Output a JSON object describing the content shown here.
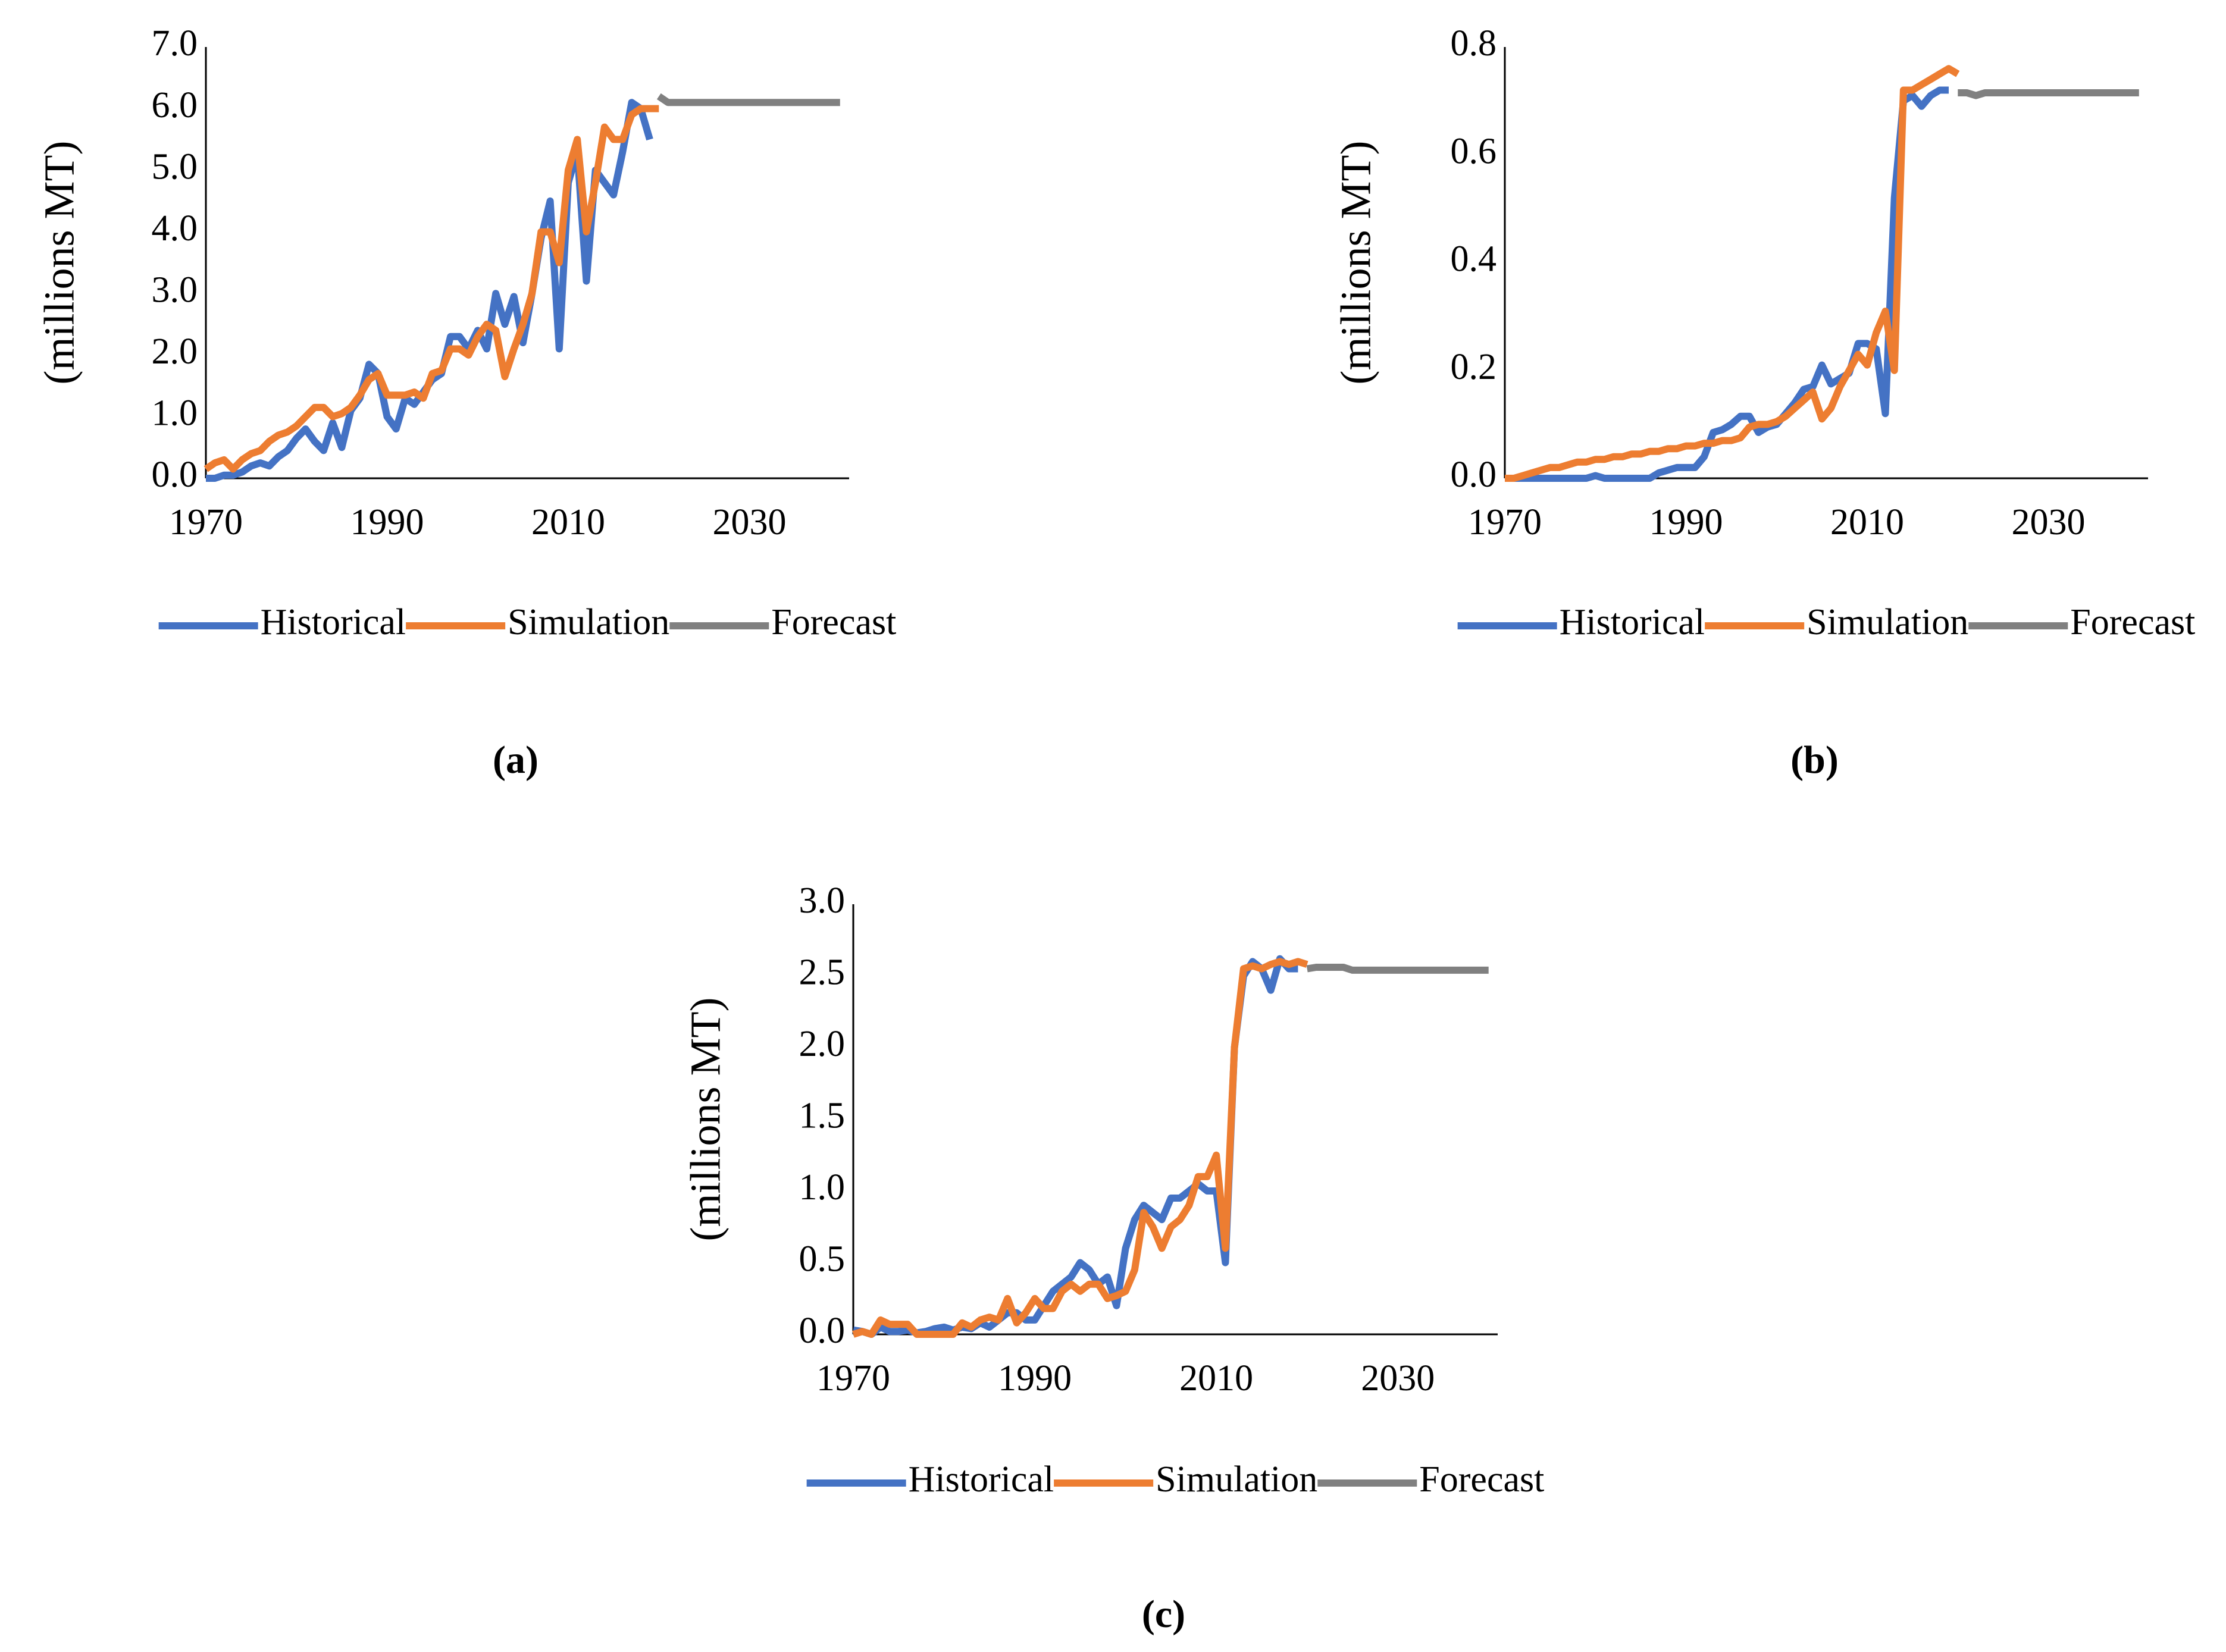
{
  "chart_data": [
    {
      "type": "line",
      "caption": "(a)",
      "y_label": "(millions MT)",
      "x": [
        1970,
        1971,
        1972,
        1973,
        1974,
        1975,
        1976,
        1977,
        1978,
        1979,
        1980,
        1981,
        1982,
        1983,
        1984,
        1985,
        1986,
        1987,
        1988,
        1989,
        1990,
        1991,
        1992,
        1993,
        1994,
        1995,
        1996,
        1997,
        1998,
        1999,
        2000,
        2001,
        2002,
        2003,
        2004,
        2005,
        2006,
        2007,
        2008,
        2009,
        2010,
        2011,
        2012,
        2013,
        2014,
        2015,
        2016,
        2017,
        2018,
        2019,
        2020,
        2021,
        2022,
        2023,
        2024,
        2025,
        2026,
        2027,
        2028,
        2029,
        2030,
        2031,
        2032,
        2033,
        2034,
        2035,
        2036,
        2037,
        2038,
        2039,
        2040
      ],
      "xlim": [
        1970,
        2041
      ],
      "xticks": [
        1970,
        1990,
        2010,
        2030
      ],
      "ylim": [
        0,
        7
      ],
      "yticks": [
        {
          "value": 0,
          "label": "0.0"
        },
        {
          "value": 1,
          "label": "1.0"
        },
        {
          "value": 2,
          "label": "2.0"
        },
        {
          "value": 3,
          "label": "3.0"
        },
        {
          "value": 4,
          "label": "4.0"
        },
        {
          "value": 5,
          "label": "5.0"
        },
        {
          "value": 6,
          "label": "6.0"
        },
        {
          "value": 7,
          "label": "7.0"
        }
      ],
      "series": [
        {
          "name": "Historical",
          "color": "#4472c4",
          "values": [
            0,
            0,
            0.05,
            0.05,
            0.1,
            0.2,
            0.25,
            0.2,
            0.35,
            0.45,
            0.65,
            0.8,
            0.6,
            0.45,
            0.9,
            0.5,
            1.1,
            1.3,
            1.85,
            1.7,
            1.0,
            0.8,
            1.3,
            1.2,
            1.4,
            1.6,
            1.7,
            2.3,
            2.3,
            2.1,
            2.4,
            2.1,
            3.0,
            2.5,
            2.95,
            2.2,
            3.0,
            3.9,
            4.5,
            2.1,
            4.8,
            5.3,
            3.2,
            5.0,
            4.8,
            4.6,
            5.3,
            6.1,
            6.0,
            5.5,
            null,
            null,
            null,
            null,
            null,
            null,
            null,
            null,
            null,
            null,
            null,
            null,
            null,
            null,
            null,
            null,
            null,
            null,
            null,
            null,
            null
          ]
        },
        {
          "name": "Simulation",
          "color": "#ed7d31",
          "values": [
            0.15,
            0.25,
            0.3,
            0.15,
            0.3,
            0.4,
            0.45,
            0.6,
            0.7,
            0.75,
            0.85,
            1.0,
            1.15,
            1.15,
            1.0,
            1.05,
            1.15,
            1.35,
            1.6,
            1.7,
            1.35,
            1.35,
            1.35,
            1.4,
            1.3,
            1.7,
            1.75,
            2.1,
            2.1,
            2.0,
            2.3,
            2.5,
            2.4,
            1.65,
            2.1,
            2.5,
            3.0,
            4.0,
            4.0,
            3.5,
            5.0,
            5.5,
            4.0,
            4.8,
            5.7,
            5.5,
            5.5,
            5.9,
            6.0,
            6.0,
            6.0,
            null,
            null,
            null,
            null,
            null,
            null,
            null,
            null,
            null,
            null,
            null,
            null,
            null,
            null,
            null,
            null,
            null,
            null,
            null,
            null
          ]
        },
        {
          "name": "Forecast",
          "color": "#808080",
          "values": [
            null,
            null,
            null,
            null,
            null,
            null,
            null,
            null,
            null,
            null,
            null,
            null,
            null,
            null,
            null,
            null,
            null,
            null,
            null,
            null,
            null,
            null,
            null,
            null,
            null,
            null,
            null,
            null,
            null,
            null,
            null,
            null,
            null,
            null,
            null,
            null,
            null,
            null,
            null,
            null,
            null,
            null,
            null,
            null,
            null,
            null,
            null,
            null,
            null,
            null,
            6.2,
            6.1,
            6.1,
            6.1,
            6.1,
            6.1,
            6.1,
            6.1,
            6.1,
            6.1,
            6.1,
            6.1,
            6.1,
            6.1,
            6.1,
            6.1,
            6.1,
            6.1,
            6.1,
            6.1,
            6.1
          ]
        }
      ]
    },
    {
      "type": "line",
      "caption": "(b)",
      "y_label": "(millions MT)",
      "x": [
        1970,
        1971,
        1972,
        1973,
        1974,
        1975,
        1976,
        1977,
        1978,
        1979,
        1980,
        1981,
        1982,
        1983,
        1984,
        1985,
        1986,
        1987,
        1988,
        1989,
        1990,
        1991,
        1992,
        1993,
        1994,
        1995,
        1996,
        1997,
        1998,
        1999,
        2000,
        2001,
        2002,
        2003,
        2004,
        2005,
        2006,
        2007,
        2008,
        2009,
        2010,
        2011,
        2012,
        2013,
        2014,
        2015,
        2016,
        2017,
        2018,
        2019,
        2020,
        2021,
        2022,
        2023,
        2024,
        2025,
        2026,
        2027,
        2028,
        2029,
        2030,
        2031,
        2032,
        2033,
        2034,
        2035,
        2036,
        2037,
        2038,
        2039,
        2040
      ],
      "xlim": [
        1970,
        2041
      ],
      "xticks": [
        1970,
        1990,
        2010,
        2030
      ],
      "ylim": [
        0,
        0.8
      ],
      "yticks": [
        {
          "value": 0,
          "label": "0.0"
        },
        0.2,
        0.4,
        0.6,
        0.8
      ],
      "series": [
        {
          "name": "Historical",
          "color": "#4472c4",
          "values": [
            0,
            0,
            0,
            0,
            0,
            0,
            0,
            0,
            0,
            0,
            0.005,
            0,
            0,
            0,
            0,
            0,
            0,
            0.01,
            0.015,
            0.02,
            0.02,
            0.02,
            0.04,
            0.085,
            0.09,
            0.1,
            0.115,
            0.115,
            0.085,
            0.095,
            0.1,
            0.12,
            0.14,
            0.165,
            0.17,
            0.21,
            0.175,
            0.185,
            0.195,
            0.25,
            0.25,
            0.24,
            0.12,
            0.52,
            0.7,
            0.71,
            0.69,
            0.71,
            0.72,
            0.72,
            null,
            null,
            null,
            null,
            null,
            null,
            null,
            null,
            null,
            null,
            null,
            null,
            null,
            null,
            null,
            null,
            null,
            null,
            null,
            null,
            null
          ]
        },
        {
          "name": "Simulation",
          "color": "#ed7d31",
          "values": [
            0,
            0,
            0.005,
            0.01,
            0.015,
            0.02,
            0.02,
            0.025,
            0.03,
            0.03,
            0.035,
            0.035,
            0.04,
            0.04,
            0.045,
            0.045,
            0.05,
            0.05,
            0.055,
            0.055,
            0.06,
            0.06,
            0.065,
            0.065,
            0.07,
            0.07,
            0.075,
            0.095,
            0.1,
            0.1,
            0.105,
            0.115,
            0.13,
            0.145,
            0.16,
            0.11,
            0.13,
            0.17,
            0.2,
            0.23,
            0.21,
            0.27,
            0.31,
            0.2,
            0.72,
            0.72,
            0.73,
            0.74,
            0.75,
            0.76,
            0.75,
            null,
            null,
            null,
            null,
            null,
            null,
            null,
            null,
            null,
            null,
            null,
            null,
            null,
            null,
            null,
            null,
            null,
            null,
            null,
            null
          ]
        },
        {
          "name": "Forecast",
          "color": "#808080",
          "values": [
            null,
            null,
            null,
            null,
            null,
            null,
            null,
            null,
            null,
            null,
            null,
            null,
            null,
            null,
            null,
            null,
            null,
            null,
            null,
            null,
            null,
            null,
            null,
            null,
            null,
            null,
            null,
            null,
            null,
            null,
            null,
            null,
            null,
            null,
            null,
            null,
            null,
            null,
            null,
            null,
            null,
            null,
            null,
            null,
            null,
            null,
            null,
            null,
            null,
            null,
            0.715,
            0.715,
            0.71,
            0.715,
            0.715,
            0.715,
            0.715,
            0.715,
            0.715,
            0.715,
            0.715,
            0.715,
            0.715,
            0.715,
            0.715,
            0.715,
            0.715,
            0.715,
            0.715,
            0.715,
            0.715
          ]
        }
      ]
    },
    {
      "type": "line",
      "caption": "(c)",
      "y_label": "(millions MT)",
      "x": [
        1970,
        1971,
        1972,
        1973,
        1974,
        1975,
        1976,
        1977,
        1978,
        1979,
        1980,
        1981,
        1982,
        1983,
        1984,
        1985,
        1986,
        1987,
        1988,
        1989,
        1990,
        1991,
        1992,
        1993,
        1994,
        1995,
        1996,
        1997,
        1998,
        1999,
        2000,
        2001,
        2002,
        2003,
        2004,
        2005,
        2006,
        2007,
        2008,
        2009,
        2010,
        2011,
        2012,
        2013,
        2014,
        2015,
        2016,
        2017,
        2018,
        2019,
        2020,
        2021,
        2022,
        2023,
        2024,
        2025,
        2026,
        2027,
        2028,
        2029,
        2030,
        2031,
        2032,
        2033,
        2034,
        2035,
        2036,
        2037,
        2038,
        2039,
        2040
      ],
      "xlim": [
        1970,
        2041
      ],
      "xticks": [
        1970,
        1990,
        2010,
        2030
      ],
      "ylim": [
        0,
        3
      ],
      "yticks": [
        {
          "value": 0,
          "label": "0.0"
        },
        0.5,
        {
          "value": 1,
          "label": "1.0"
        },
        1.5,
        {
          "value": 2,
          "label": "2.0"
        },
        2.5,
        {
          "value": 3,
          "label": "3.0"
        }
      ],
      "series": [
        {
          "name": "Historical",
          "color": "#4472c4",
          "values": [
            0.03,
            0.02,
            0,
            0.05,
            0.02,
            0.02,
            0.03,
            0.01,
            0.02,
            0.04,
            0.05,
            0.03,
            0.05,
            0.04,
            0.08,
            0.05,
            0.1,
            0.15,
            0.15,
            0.1,
            0.1,
            0.2,
            0.3,
            0.35,
            0.4,
            0.5,
            0.45,
            0.35,
            0.4,
            0.2,
            0.6,
            0.8,
            0.9,
            0.85,
            0.8,
            0.95,
            0.95,
            1.0,
            1.05,
            1.0,
            1.0,
            0.5,
            2.0,
            2.5,
            2.6,
            2.55,
            2.4,
            2.62,
            2.55,
            2.55,
            null,
            null,
            null,
            null,
            null,
            null,
            null,
            null,
            null,
            null,
            null,
            null,
            null,
            null,
            null,
            null,
            null,
            null,
            null,
            null,
            null
          ]
        },
        {
          "name": "Simulation",
          "color": "#ed7d31",
          "values": [
            0,
            0.02,
            0,
            0.1,
            0.07,
            0.07,
            0.07,
            0,
            0,
            0,
            0,
            0,
            0.08,
            0.05,
            0.1,
            0.12,
            0.1,
            0.25,
            0.08,
            0.15,
            0.25,
            0.18,
            0.18,
            0.3,
            0.35,
            0.3,
            0.35,
            0.35,
            0.25,
            0.27,
            0.3,
            0.45,
            0.85,
            0.75,
            0.6,
            0.75,
            0.8,
            0.9,
            1.1,
            1.1,
            1.25,
            0.6,
            2.0,
            2.55,
            2.57,
            2.55,
            2.58,
            2.6,
            2.58,
            2.6,
            2.58,
            null,
            null,
            null,
            null,
            null,
            null,
            null,
            null,
            null,
            null,
            null,
            null,
            null,
            null,
            null,
            null,
            null,
            null,
            null,
            null
          ]
        },
        {
          "name": "Forecast",
          "color": "#808080",
          "values": [
            null,
            null,
            null,
            null,
            null,
            null,
            null,
            null,
            null,
            null,
            null,
            null,
            null,
            null,
            null,
            null,
            null,
            null,
            null,
            null,
            null,
            null,
            null,
            null,
            null,
            null,
            null,
            null,
            null,
            null,
            null,
            null,
            null,
            null,
            null,
            null,
            null,
            null,
            null,
            null,
            null,
            null,
            null,
            null,
            null,
            null,
            null,
            null,
            null,
            null,
            2.55,
            2.56,
            2.56,
            2.56,
            2.56,
            2.54,
            2.54,
            2.54,
            2.54,
            2.54,
            2.54,
            2.54,
            2.54,
            2.54,
            2.54,
            2.54,
            2.54,
            2.54,
            2.54,
            2.54,
            2.54
          ]
        }
      ]
    }
  ]
}
